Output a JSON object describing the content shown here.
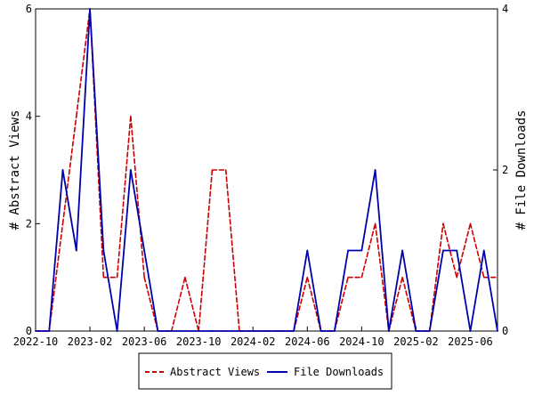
{
  "chart_data": {
    "type": "line",
    "x_tick_labels": [
      "2022-10",
      "2023-02",
      "2023-06",
      "2023-10",
      "2024-02",
      "2024-06",
      "2024-10",
      "2025-02",
      "2025-06"
    ],
    "x_ticks_month_index": [
      0,
      4,
      8,
      12,
      16,
      20,
      24,
      28,
      32
    ],
    "x_months": [
      "2022-10",
      "2022-11",
      "2022-12",
      "2023-01",
      "2023-02",
      "2023-03",
      "2023-04",
      "2023-05",
      "2023-06",
      "2023-07",
      "2023-08",
      "2023-09",
      "2023-10",
      "2023-11",
      "2023-12",
      "2024-01",
      "2024-02",
      "2024-03",
      "2024-04",
      "2024-05",
      "2024-06",
      "2024-07",
      "2024-08",
      "2024-09",
      "2024-10",
      "2024-11",
      "2024-12",
      "2025-01",
      "2025-02",
      "2025-03",
      "2025-04",
      "2025-05",
      "2025-06",
      "2025-07",
      "2025-08"
    ],
    "left_axis": {
      "label": "# Abstract Views",
      "ylim": [
        0,
        6
      ],
      "ticks": [
        "0",
        "2",
        "4",
        "6"
      ]
    },
    "right_axis": {
      "label": "# File Downloads",
      "ylim": [
        0,
        4
      ],
      "ticks": [
        "0",
        "2",
        "4"
      ]
    },
    "series": [
      {
        "name": "Abstract Views",
        "axis": "left",
        "color": "#cc0000",
        "dashed": true,
        "values": [
          0,
          0,
          2,
          4,
          6,
          1,
          1,
          4,
          1,
          0,
          0,
          1,
          0,
          3,
          3,
          0,
          0,
          0,
          0,
          0,
          1,
          0,
          0,
          1,
          1,
          2,
          0,
          1,
          0,
          0,
          2,
          1,
          2,
          1,
          1
        ]
      },
      {
        "name": "File Downloads",
        "axis": "right",
        "color": "#0000aa",
        "dashed": false,
        "values": [
          0,
          0,
          2,
          1,
          4,
          1,
          0,
          2,
          1,
          0,
          0,
          0,
          0,
          0,
          0,
          0,
          0,
          0,
          0,
          0,
          1,
          0,
          0,
          1,
          1,
          2,
          0,
          1,
          0,
          0,
          1,
          1,
          0,
          1,
          0
        ]
      }
    ],
    "grid": false,
    "legend_position": "bottom-center"
  }
}
